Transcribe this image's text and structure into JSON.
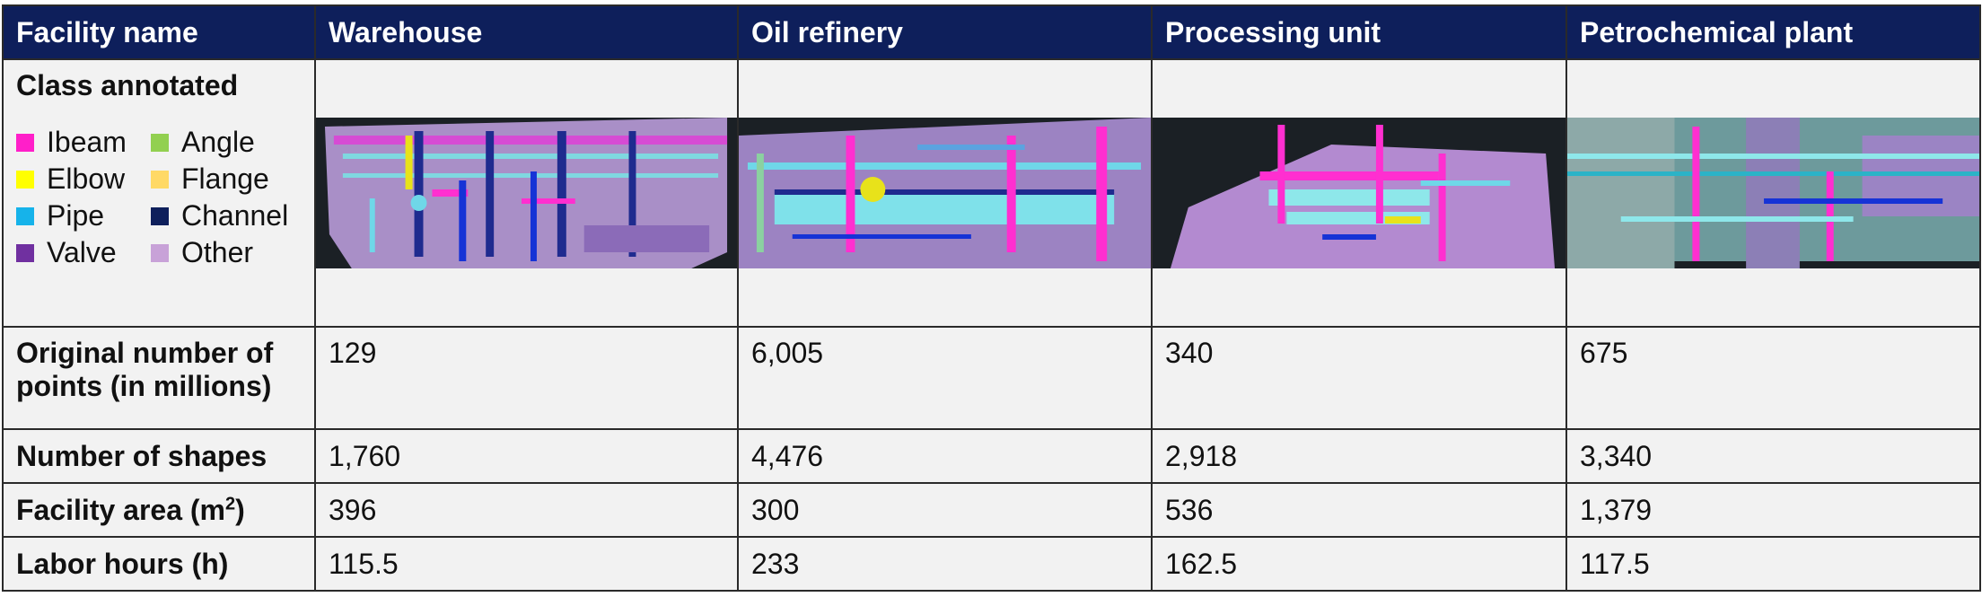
{
  "header": {
    "facility_name": "Facility name",
    "facilities": [
      "Warehouse",
      "Oil refinery",
      "Processing unit",
      "Petrochemical plant"
    ]
  },
  "class_row": {
    "label": "Class annotated",
    "legend": [
      {
        "name": "Ibeam",
        "color": "#ff1fc9"
      },
      {
        "name": "Angle",
        "color": "#92d050"
      },
      {
        "name": "Elbow",
        "color": "#ffff00"
      },
      {
        "name": "Flange",
        "color": "#ffd966"
      },
      {
        "name": "Pipe",
        "color": "#16b3ea"
      },
      {
        "name": "Channel",
        "color": "#0e1f5b"
      },
      {
        "name": "Valve",
        "color": "#7030a0"
      },
      {
        "name": "Other",
        "color": "#c8a2d8"
      }
    ]
  },
  "rows": {
    "points": {
      "label_1": "Original number of",
      "label_2": "points (in millions)",
      "values": [
        "129",
        "6,005",
        "340",
        "675"
      ]
    },
    "shapes": {
      "label": "Number of shapes",
      "values": [
        "1,760",
        "4,476",
        "2,918",
        "3,340"
      ]
    },
    "area": {
      "label": "Facility area (m",
      "label_sup": "2",
      "label_end": ")",
      "values": [
        "396",
        "300",
        "536",
        "1,379"
      ]
    },
    "labor": {
      "label": "Labor hours (h)",
      "values": [
        "115.5",
        "233",
        "162.5",
        "117.5"
      ]
    }
  }
}
